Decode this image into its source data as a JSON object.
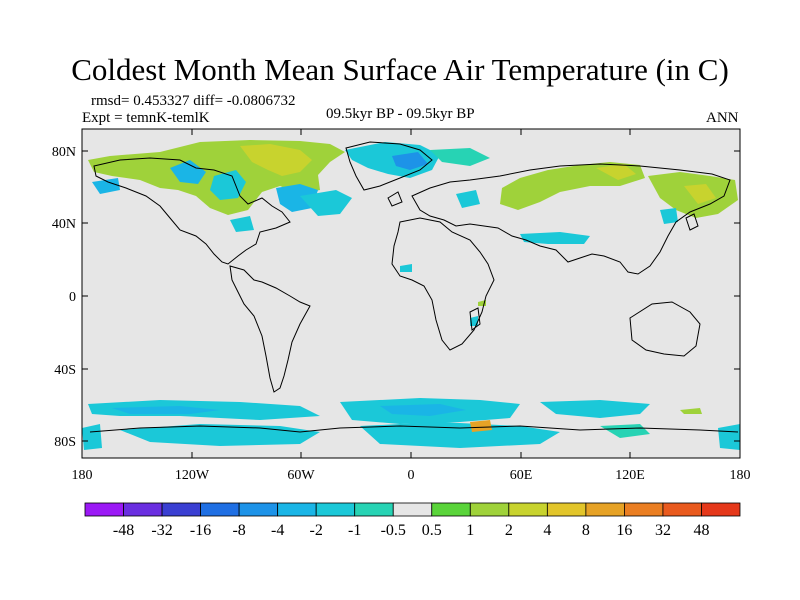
{
  "title": "Coldest Month Mean Surface Air Temperature (in C)",
  "stats": "rmsd= 0.453327 diff= -0.0806732",
  "experiment": "Expt = temnK-temlK",
  "period": "09.5kyr BP - 09.5kyr BP",
  "season": "ANN",
  "lat_ticks": [
    "80N",
    "40N",
    "0",
    "40S",
    "80S"
  ],
  "lon_ticks": [
    "180",
    "120W",
    "60W",
    "0",
    "60E",
    "120E",
    "180"
  ],
  "colorbar": {
    "colors": [
      "#9b19f5",
      "#6a2ee0",
      "#3a3fd2",
      "#1f6fe3",
      "#1d93e8",
      "#1ab5e6",
      "#1bc8d8",
      "#27d3b4",
      "#e6e6e6",
      "#5ad43a",
      "#9fd23a",
      "#c8d32e",
      "#e2c52a",
      "#e6a226",
      "#ea7e22",
      "#e95a1e",
      "#e5381a"
    ],
    "labels": [
      "-48",
      "-32",
      "-16",
      "-8",
      "-4",
      "-2",
      "-1",
      "-0.5",
      "0.5",
      "1",
      "2",
      "4",
      "8",
      "16",
      "32",
      "48"
    ]
  }
}
